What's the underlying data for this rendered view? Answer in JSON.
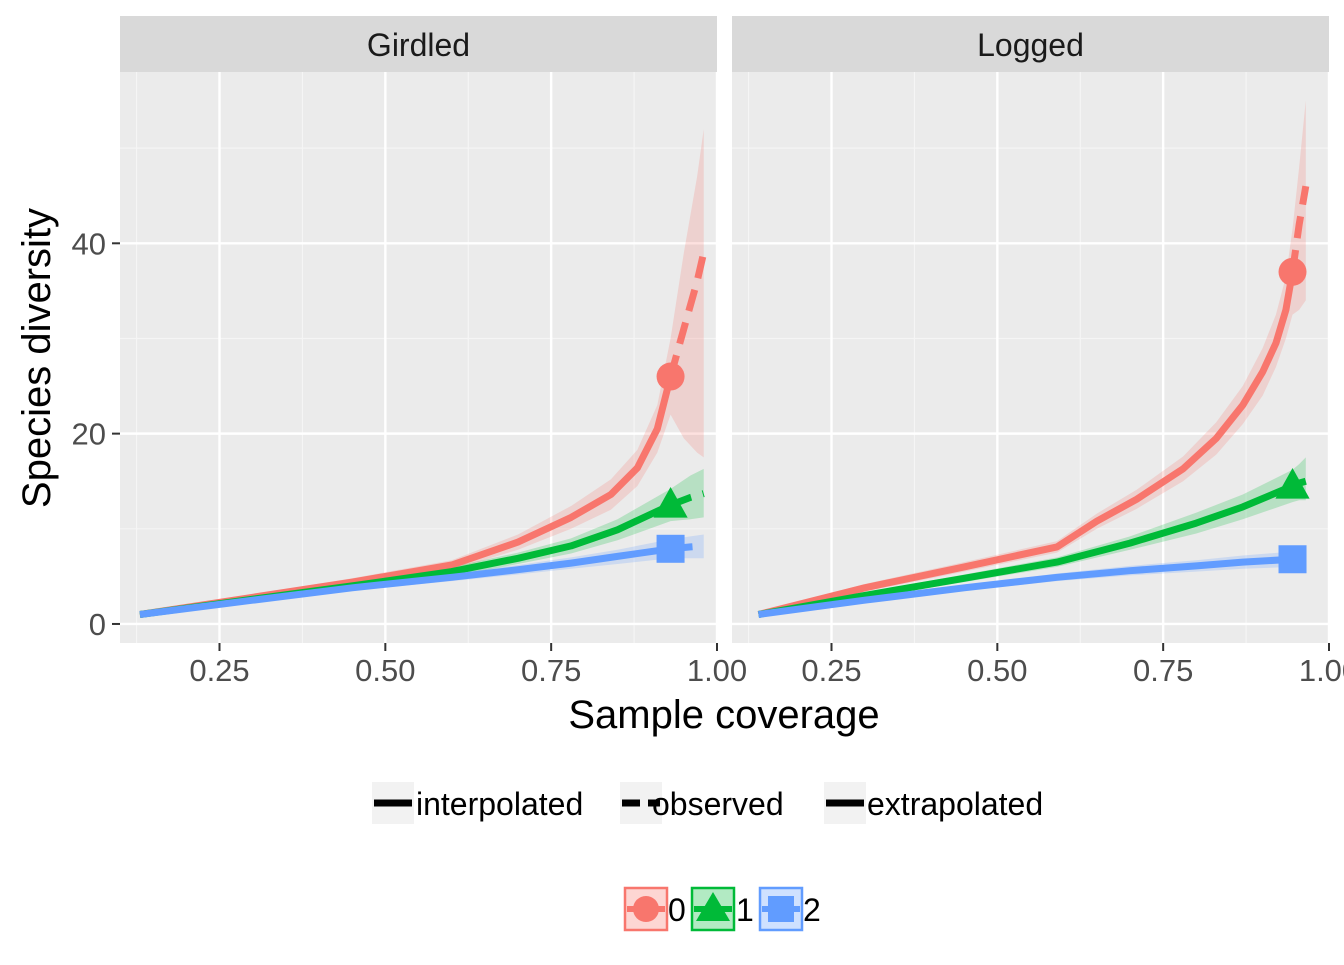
{
  "chart_data": {
    "type": "line",
    "xlabel": "Sample coverage",
    "ylabel": "Species diversity",
    "xlim": [
      0.1,
      1.0
    ],
    "ylim": [
      -2,
      58
    ],
    "x_ticks": [
      0.25,
      0.5,
      0.75,
      1.0
    ],
    "x_tick_labels": [
      "0.25",
      "0.50",
      "0.75",
      "1.00"
    ],
    "y_ticks": [
      0,
      20,
      40
    ],
    "y_tick_labels": [
      "0",
      "20",
      "40"
    ],
    "grid": true,
    "legend_position": "bottom",
    "colors": {
      "0": "#F8766D",
      "1": "#00BA38",
      "2": "#619CFF"
    },
    "legend_method": {
      "items": [
        {
          "label": "interpolated",
          "linetype": "solid"
        },
        {
          "label": "observed",
          "linetype": "dashed"
        },
        {
          "label": "extrapolated",
          "linetype": "solid"
        }
      ]
    },
    "legend_order": {
      "items": [
        {
          "label": "0",
          "shape": "circle",
          "color": "#F8766D"
        },
        {
          "label": "1",
          "shape": "triangle",
          "color": "#00BA38"
        },
        {
          "label": "2",
          "shape": "square",
          "color": "#619CFF"
        }
      ]
    },
    "panels": [
      {
        "title": "Girdled",
        "series": [
          {
            "name": "0",
            "shape": "circle",
            "color": "#F8766D",
            "interpolated": [
              [
                0.13,
                1
              ],
              [
                0.3,
                2.8
              ],
              [
                0.45,
                4.4
              ],
              [
                0.6,
                6.2
              ],
              [
                0.7,
                8.6
              ],
              [
                0.78,
                11.2
              ],
              [
                0.84,
                13.6
              ],
              [
                0.88,
                16.4
              ],
              [
                0.91,
                20.5
              ],
              [
                0.93,
                26
              ]
            ],
            "extrapolated": [
              [
                0.93,
                26
              ],
              [
                0.95,
                31
              ],
              [
                0.97,
                36
              ],
              [
                0.98,
                39
              ]
            ],
            "lower": [
              [
                0.13,
                0.8
              ],
              [
                0.3,
                2.5
              ],
              [
                0.45,
                4
              ],
              [
                0.6,
                5.7
              ],
              [
                0.7,
                7.8
              ],
              [
                0.78,
                10
              ],
              [
                0.84,
                12
              ],
              [
                0.88,
                14.5
              ],
              [
                0.91,
                18
              ],
              [
                0.93,
                22
              ],
              [
                0.95,
                19.5
              ],
              [
                0.97,
                18
              ],
              [
                0.98,
                17.5
              ]
            ],
            "upper": [
              [
                0.13,
                1.2
              ],
              [
                0.3,
                3.1
              ],
              [
                0.45,
                4.8
              ],
              [
                0.6,
                6.7
              ],
              [
                0.7,
                9.4
              ],
              [
                0.78,
                12.4
              ],
              [
                0.84,
                15.2
              ],
              [
                0.88,
                18.3
              ],
              [
                0.91,
                23
              ],
              [
                0.93,
                30
              ],
              [
                0.95,
                39
              ],
              [
                0.97,
                47
              ],
              [
                0.98,
                52
              ]
            ],
            "observed_point": {
              "x": 0.93,
              "y": 26
            }
          },
          {
            "name": "1",
            "shape": "triangle",
            "color": "#00BA38",
            "interpolated": [
              [
                0.13,
                1
              ],
              [
                0.3,
                2.6
              ],
              [
                0.45,
                4
              ],
              [
                0.6,
                5.5
              ],
              [
                0.7,
                6.9
              ],
              [
                0.78,
                8.2
              ],
              [
                0.85,
                9.9
              ],
              [
                0.93,
                12.5
              ]
            ],
            "extrapolated": [
              [
                0.93,
                12.5
              ],
              [
                0.96,
                13.3
              ],
              [
                0.98,
                13.7
              ]
            ],
            "lower": [
              [
                0.13,
                0.8
              ],
              [
                0.3,
                2.3
              ],
              [
                0.45,
                3.7
              ],
              [
                0.6,
                5
              ],
              [
                0.7,
                6.3
              ],
              [
                0.78,
                7.4
              ],
              [
                0.85,
                8.8
              ],
              [
                0.93,
                10.8
              ],
              [
                0.96,
                11
              ],
              [
                0.98,
                11.2
              ]
            ],
            "upper": [
              [
                0.13,
                1.2
              ],
              [
                0.3,
                2.9
              ],
              [
                0.45,
                4.3
              ],
              [
                0.6,
                6
              ],
              [
                0.7,
                7.5
              ],
              [
                0.78,
                9
              ],
              [
                0.85,
                11
              ],
              [
                0.93,
                14.2
              ],
              [
                0.96,
                15.6
              ],
              [
                0.98,
                16.3
              ]
            ],
            "observed_point": {
              "x": 0.93,
              "y": 12.5
            }
          },
          {
            "name": "2",
            "shape": "square",
            "color": "#619CFF",
            "interpolated": [
              [
                0.13,
                1
              ],
              [
                0.3,
                2.5
              ],
              [
                0.45,
                3.8
              ],
              [
                0.6,
                4.9
              ],
              [
                0.7,
                5.7
              ],
              [
                0.78,
                6.4
              ],
              [
                0.85,
                7.1
              ],
              [
                0.93,
                7.9
              ]
            ],
            "extrapolated": [
              [
                0.93,
                7.9
              ],
              [
                0.96,
                8.1
              ],
              [
                0.98,
                8.2
              ]
            ],
            "lower": [
              [
                0.13,
                0.8
              ],
              [
                0.3,
                2.2
              ],
              [
                0.45,
                3.5
              ],
              [
                0.6,
                4.5
              ],
              [
                0.7,
                5.2
              ],
              [
                0.78,
                5.8
              ],
              [
                0.85,
                6.3
              ],
              [
                0.93,
                6.9
              ],
              [
                0.96,
                6.9
              ],
              [
                0.98,
                6.9
              ]
            ],
            "upper": [
              [
                0.13,
                1.2
              ],
              [
                0.3,
                2.8
              ],
              [
                0.45,
                4.1
              ],
              [
                0.6,
                5.3
              ],
              [
                0.7,
                6.2
              ],
              [
                0.78,
                7
              ],
              [
                0.85,
                7.8
              ],
              [
                0.93,
                8.9
              ],
              [
                0.96,
                9.2
              ],
              [
                0.98,
                9.4
              ]
            ],
            "observed_point": {
              "x": 0.93,
              "y": 7.9
            }
          }
        ]
      },
      {
        "title": "Logged",
        "series": [
          {
            "name": "0",
            "shape": "circle",
            "color": "#F8766D",
            "interpolated": [
              [
                0.14,
                1
              ],
              [
                0.3,
                3.8
              ],
              [
                0.45,
                6
              ],
              [
                0.59,
                8.1
              ],
              [
                0.65,
                10.8
              ],
              [
                0.71,
                13.1
              ],
              [
                0.78,
                16.3
              ],
              [
                0.83,
                19.5
              ],
              [
                0.87,
                23
              ],
              [
                0.9,
                26.5
              ],
              [
                0.92,
                29.5
              ],
              [
                0.935,
                33
              ],
              [
                0.945,
                37
              ]
            ],
            "extrapolated": [
              [
                0.945,
                37
              ],
              [
                0.955,
                42
              ],
              [
                0.965,
                46
              ]
            ],
            "lower": [
              [
                0.14,
                0.8
              ],
              [
                0.3,
                3.4
              ],
              [
                0.45,
                5.5
              ],
              [
                0.59,
                7.5
              ],
              [
                0.65,
                10
              ],
              [
                0.71,
                12.1
              ],
              [
                0.78,
                15
              ],
              [
                0.83,
                17.8
              ],
              [
                0.87,
                21
              ],
              [
                0.9,
                24
              ],
              [
                0.92,
                27
              ],
              [
                0.935,
                30
              ],
              [
                0.945,
                32.5
              ],
              [
                0.955,
                33
              ],
              [
                0.965,
                34
              ]
            ],
            "upper": [
              [
                0.14,
                1.2
              ],
              [
                0.3,
                4.2
              ],
              [
                0.45,
                6.5
              ],
              [
                0.59,
                8.7
              ],
              [
                0.65,
                11.6
              ],
              [
                0.71,
                14.1
              ],
              [
                0.78,
                17.6
              ],
              [
                0.83,
                21.2
              ],
              [
                0.87,
                25
              ],
              [
                0.9,
                29
              ],
              [
                0.92,
                32.5
              ],
              [
                0.935,
                36.5
              ],
              [
                0.945,
                41.5
              ],
              [
                0.955,
                48
              ],
              [
                0.965,
                55
              ]
            ],
            "observed_point": {
              "x": 0.945,
              "y": 37
            }
          },
          {
            "name": "1",
            "shape": "triangle",
            "color": "#00BA38",
            "interpolated": [
              [
                0.14,
                1
              ],
              [
                0.3,
                3
              ],
              [
                0.45,
                4.8
              ],
              [
                0.59,
                6.5
              ],
              [
                0.7,
                8.5
              ],
              [
                0.8,
                10.6
              ],
              [
                0.87,
                12.3
              ],
              [
                0.945,
                14.5
              ]
            ],
            "extrapolated": [
              [
                0.945,
                14.5
              ],
              [
                0.955,
                14.8
              ],
              [
                0.965,
                15
              ]
            ],
            "lower": [
              [
                0.14,
                0.8
              ],
              [
                0.3,
                2.7
              ],
              [
                0.45,
                4.4
              ],
              [
                0.59,
                6
              ],
              [
                0.7,
                7.8
              ],
              [
                0.8,
                9.5
              ],
              [
                0.87,
                11
              ],
              [
                0.945,
                12.8
              ],
              [
                0.955,
                13
              ],
              [
                0.965,
                13
              ]
            ],
            "upper": [
              [
                0.14,
                1.2
              ],
              [
                0.3,
                3.3
              ],
              [
                0.45,
                5.2
              ],
              [
                0.59,
                7
              ],
              [
                0.7,
                9.2
              ],
              [
                0.8,
                11.7
              ],
              [
                0.87,
                13.6
              ],
              [
                0.945,
                16.2
              ],
              [
                0.955,
                16.8
              ],
              [
                0.965,
                17.5
              ]
            ],
            "observed_point": {
              "x": 0.945,
              "y": 14.5
            }
          },
          {
            "name": "2",
            "shape": "square",
            "color": "#619CFF",
            "interpolated": [
              [
                0.14,
                1
              ],
              [
                0.3,
                2.5
              ],
              [
                0.45,
                3.8
              ],
              [
                0.59,
                4.9
              ],
              [
                0.7,
                5.6
              ],
              [
                0.8,
                6.1
              ],
              [
                0.87,
                6.5
              ],
              [
                0.945,
                6.8
              ]
            ],
            "extrapolated": [
              [
                0.945,
                6.8
              ],
              [
                0.955,
                6.85
              ],
              [
                0.965,
                6.9
              ]
            ],
            "lower": [
              [
                0.14,
                0.8
              ],
              [
                0.3,
                2.2
              ],
              [
                0.45,
                3.5
              ],
              [
                0.59,
                4.5
              ],
              [
                0.7,
                5.1
              ],
              [
                0.8,
                5.5
              ],
              [
                0.87,
                5.8
              ],
              [
                0.945,
                6
              ],
              [
                0.955,
                6
              ],
              [
                0.965,
                6
              ]
            ],
            "upper": [
              [
                0.14,
                1.2
              ],
              [
                0.3,
                2.8
              ],
              [
                0.45,
                4.1
              ],
              [
                0.59,
                5.3
              ],
              [
                0.7,
                6.1
              ],
              [
                0.8,
                6.7
              ],
              [
                0.87,
                7.2
              ],
              [
                0.945,
                7.6
              ],
              [
                0.955,
                7.7
              ],
              [
                0.965,
                7.8
              ]
            ],
            "observed_point": {
              "x": 0.945,
              "y": 6.8
            }
          }
        ]
      }
    ]
  }
}
